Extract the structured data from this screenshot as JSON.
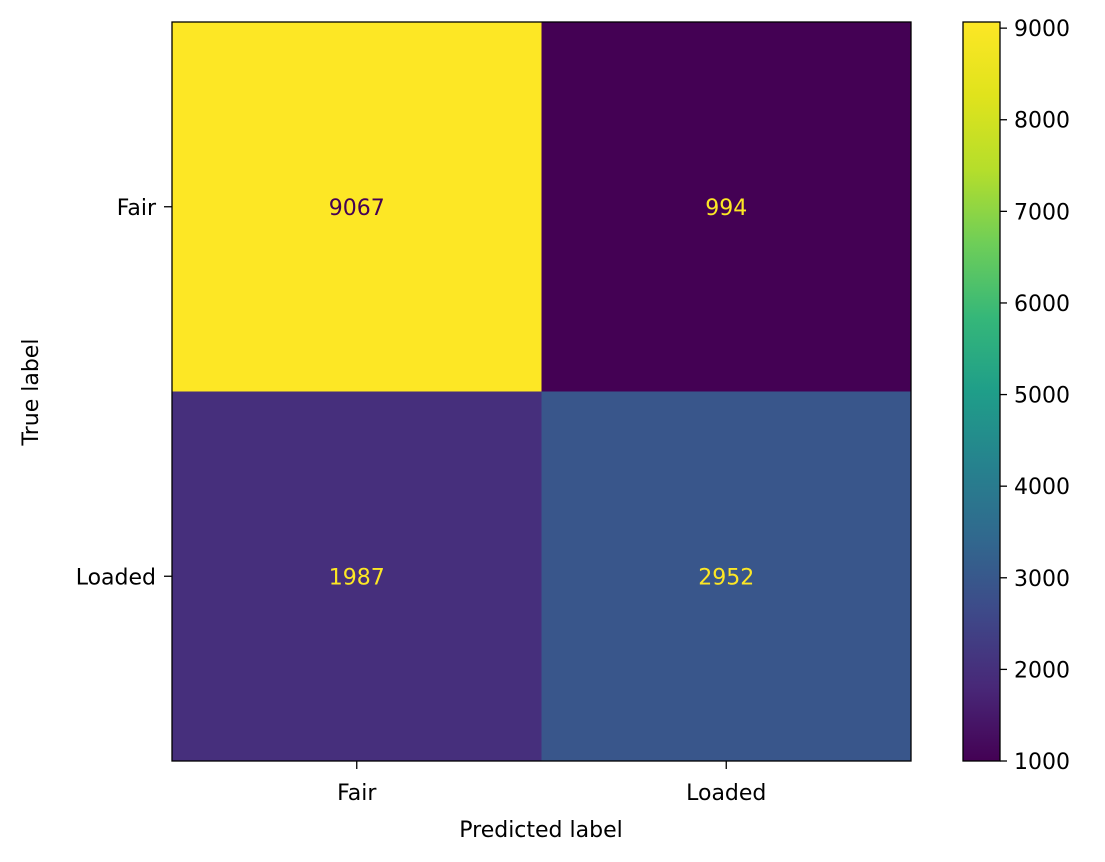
{
  "chart_data": {
    "type": "heatmap",
    "title": "",
    "xlabel": "Predicted label",
    "ylabel": "True label",
    "x_categories": [
      "Fair",
      "Loaded"
    ],
    "y_categories": [
      "Fair",
      "Loaded"
    ],
    "values": [
      [
        9067,
        994
      ],
      [
        1987,
        2952
      ]
    ],
    "colormap": "viridis",
    "colorbar": {
      "min": 1000,
      "max": 9067,
      "ticks": [
        1000,
        2000,
        3000,
        4000,
        5000,
        6000,
        7000,
        8000,
        9000
      ],
      "position": "right"
    },
    "label_colors": {
      "on_light": "#440154",
      "on_dark": "#fde725"
    },
    "grid": false
  }
}
